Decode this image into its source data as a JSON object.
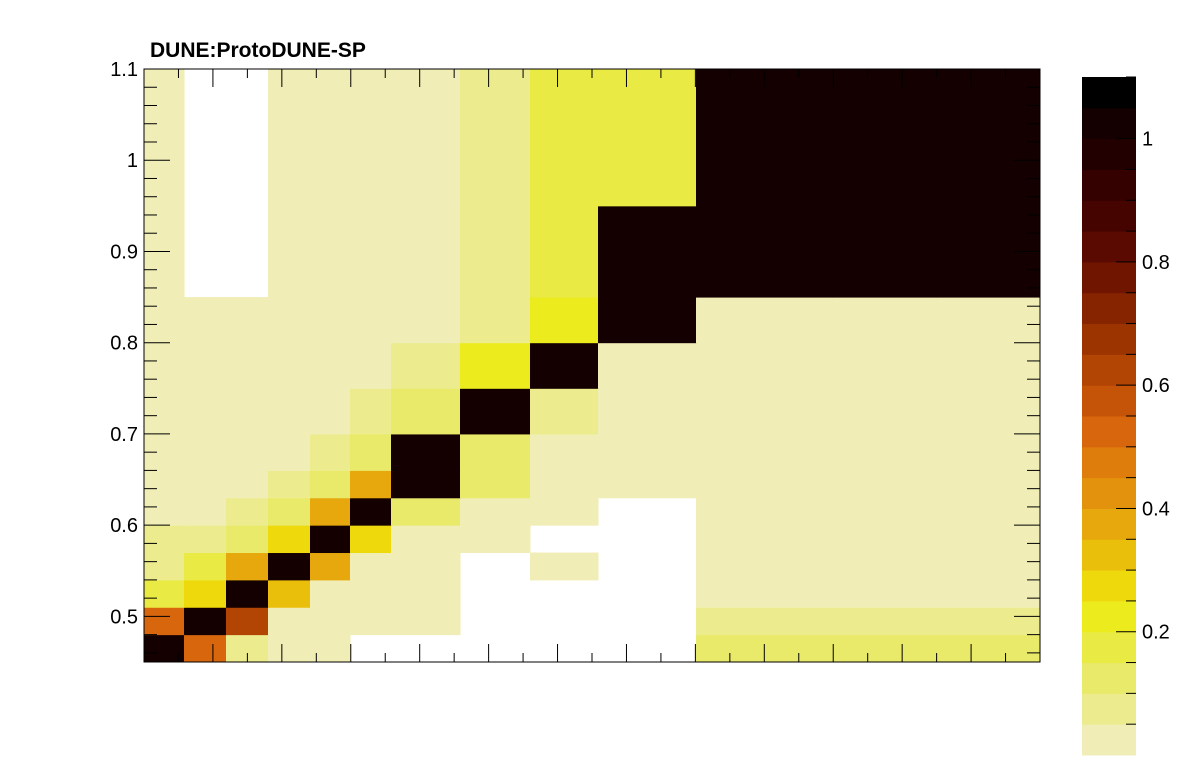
{
  "chart_data": {
    "type": "heatmap",
    "title": "DUNE:ProtoDUNE-SP",
    "xlabel": "",
    "ylabel": "",
    "y_edges": [
      0.45,
      0.48,
      0.51,
      0.54,
      0.57,
      0.6,
      0.63,
      0.66,
      0.7,
      0.75,
      0.8,
      0.85,
      0.95,
      1.1
    ],
    "x_bins": 13,
    "ylim": [
      0.45,
      1.1
    ],
    "y_ticks": [
      0.5,
      0.6,
      0.7,
      0.8,
      0.9,
      1,
      1.1
    ],
    "y_tick_labels": [
      "0.5",
      "0.6",
      "0.7",
      "0.8",
      "0.9",
      "1",
      "1.1"
    ],
    "zlim": [
      0,
      1.1
    ],
    "z_ticks": [
      0.2,
      0.4,
      0.6,
      0.8,
      1
    ],
    "z_tick_labels": [
      "0.2",
      "0.4",
      "0.6",
      "0.8",
      "1"
    ],
    "palette": [
      "#f0eeb6",
      "#ecec8e",
      "#e9e96a",
      "#eaea44",
      "#ebeb1e",
      "#eed90c",
      "#eabf0c",
      "#e6a80c",
      "#e2920c",
      "#de7c0c",
      "#d8660c",
      "#c65408",
      "#b24404",
      "#9c3400",
      "#862400",
      "#701600",
      "#5a0a00",
      "#460400",
      "#340000",
      "#220000",
      "#140000",
      "#000000"
    ],
    "z": [
      [
        1.0,
        0.5,
        0.07,
        0.02,
        0.02,
        null,
        null,
        null,
        null,
        null,
        0.14,
        0.14,
        0.14
      ],
      [
        0.5,
        1.0,
        0.6,
        0.02,
        0.02,
        0.02,
        0.02,
        null,
        null,
        null,
        0.06,
        0.06,
        0.06
      ],
      [
        0.18,
        0.28,
        1.0,
        0.35,
        0.02,
        0.02,
        0.02,
        null,
        null,
        null,
        0.02,
        0.02,
        0.02
      ],
      [
        0.05,
        0.17,
        0.38,
        1.0,
        0.38,
        0.02,
        0.02,
        null,
        0.02,
        null,
        0.02,
        0.02,
        0.02
      ],
      [
        0.05,
        0.05,
        0.14,
        0.27,
        1.0,
        0.27,
        0.02,
        0.02,
        null,
        null,
        0.02,
        0.02,
        0.02
      ],
      [
        0.02,
        0.02,
        0.07,
        0.14,
        0.37,
        1.0,
        0.14,
        0.02,
        0.02,
        null,
        0.02,
        0.02,
        0.02
      ],
      [
        0.02,
        0.02,
        0.02,
        0.07,
        0.14,
        0.36,
        1.0,
        0.14,
        0.02,
        0.02,
        0.02,
        0.02,
        0.02
      ],
      [
        0.02,
        0.02,
        0.02,
        0.02,
        0.06,
        0.14,
        1.0,
        0.14,
        0.02,
        0.02,
        0.02,
        0.02,
        0.02
      ],
      [
        0.02,
        0.02,
        0.02,
        0.02,
        0.02,
        0.07,
        0.14,
        1.0,
        0.07,
        0.02,
        0.02,
        0.02,
        0.02
      ],
      [
        0.02,
        0.02,
        0.02,
        0.02,
        0.02,
        0.02,
        0.07,
        0.2,
        1.0,
        0.02,
        0.02,
        0.02,
        0.02
      ],
      [
        0.02,
        0.02,
        0.02,
        0.02,
        0.02,
        0.02,
        0.02,
        0.07,
        0.2,
        1.0,
        0.02,
        0.02,
        0.02
      ],
      [
        0.02,
        null,
        null,
        0.02,
        0.02,
        0.02,
        0.02,
        0.06,
        0.18,
        1.0,
        1.0,
        1.0,
        1.0
      ],
      [
        0.02,
        null,
        null,
        0.02,
        0.02,
        0.02,
        0.02,
        0.06,
        0.18,
        0.18,
        1.0,
        1.0,
        1.0
      ]
    ]
  }
}
